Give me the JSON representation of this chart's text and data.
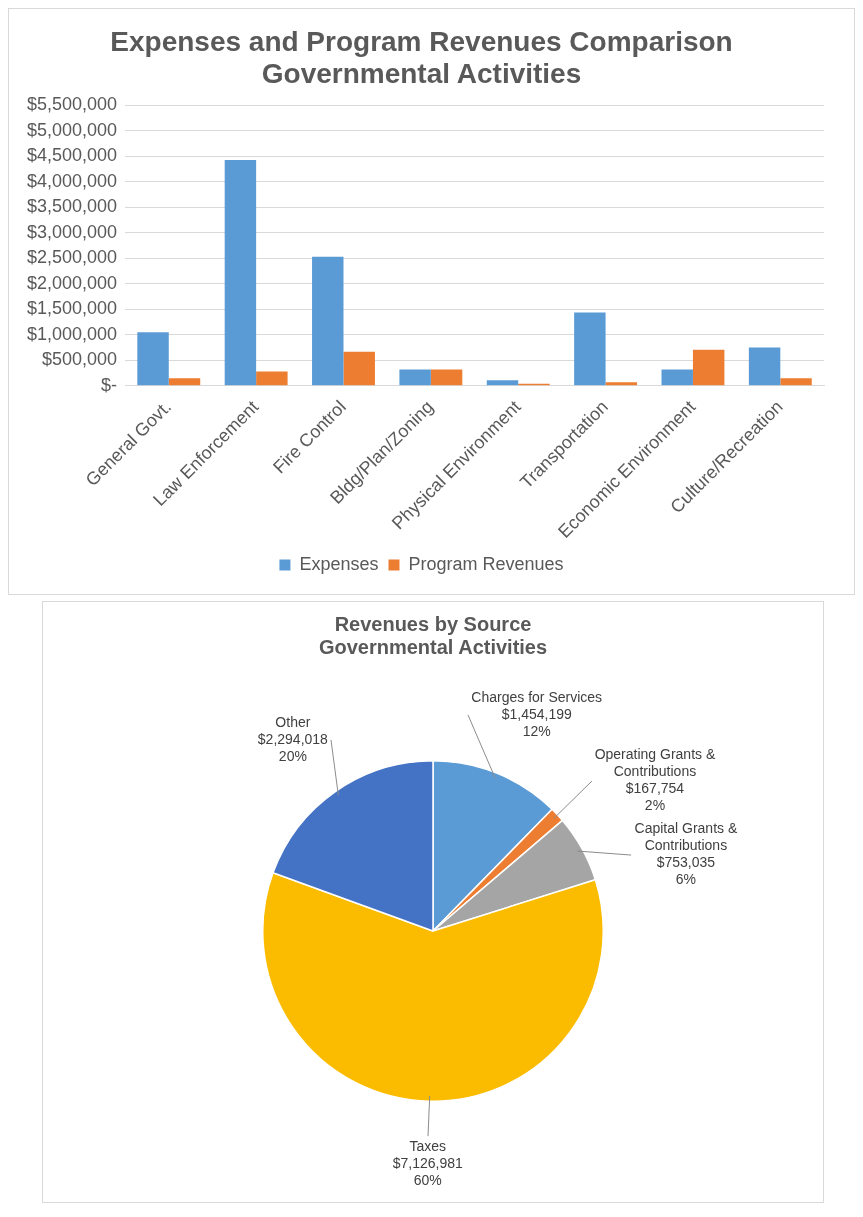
{
  "chart_data": [
    {
      "type": "bar",
      "title": "Expenses and Program Revenues Comparison\nGovernmental Activities",
      "categories": [
        "General Govt.",
        "Law Enforcement",
        "Fire Control",
        "Bldg/Plan/Zoning",
        "Physical Environment",
        "Transportation",
        "Economic Environment",
        "Culture/Recreation"
      ],
      "series": [
        {
          "name": "Expenses",
          "color": "#5b9bd5",
          "values": [
            1050000,
            4430000,
            2530000,
            320000,
            110000,
            1440000,
            320000,
            750000
          ]
        },
        {
          "name": "Program Revenues",
          "color": "#ed7d31",
          "values": [
            150000,
            280000,
            670000,
            320000,
            40000,
            70000,
            710000,
            150000
          ]
        }
      ],
      "ylim": [
        0,
        5500000
      ],
      "yticks": [
        {
          "value": 0,
          "label": "$-"
        },
        {
          "value": 500000,
          "label": "$500,000"
        },
        {
          "value": 1000000,
          "label": "$1,000,000"
        },
        {
          "value": 1500000,
          "label": "$1,500,000"
        },
        {
          "value": 2000000,
          "label": "$2,000,000"
        },
        {
          "value": 2500000,
          "label": "$2,500,000"
        },
        {
          "value": 3000000,
          "label": "$3,000,000"
        },
        {
          "value": 3500000,
          "label": "$3,500,000"
        },
        {
          "value": 4000000,
          "label": "$4,000,000"
        },
        {
          "value": 4500000,
          "label": "$4,500,000"
        },
        {
          "value": 5000000,
          "label": "$5,000,000"
        },
        {
          "value": 5500000,
          "label": "$5,500,000"
        }
      ],
      "grid": "y",
      "legend": "bottom"
    },
    {
      "type": "pie",
      "title": "Revenues by Source\nGovernmental Activities",
      "categories": [
        "Charges for Services",
        "Operating Grants & Contributions",
        "Capital Grants & Contributions",
        "Taxes",
        "Other"
      ],
      "values": [
        1454199,
        167754,
        753035,
        7126981,
        2294018
      ],
      "colors": [
        "#5b9bd5",
        "#ed7d31",
        "#a5a5a5",
        "#fbbc00",
        "#4472c4"
      ],
      "value_labels": [
        "$1,454,199\n12%",
        "$167,754\n2%",
        "$753,035\n6%",
        "$7,126,981\n60%",
        "$2,294,018\n20%"
      ]
    }
  ]
}
